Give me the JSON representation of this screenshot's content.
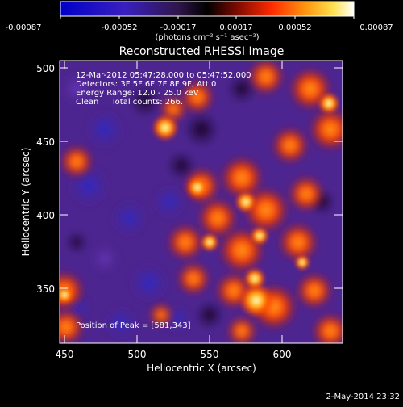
{
  "colorbar": {
    "tick_labels": [
      "-0.00087",
      "-0.00052",
      "-0.00017",
      "0.00017",
      "0.00052",
      "0.00087"
    ],
    "units": "(photons cm⁻² s⁻¹ asec⁻²)"
  },
  "image": {
    "title": "Reconstructed RHESSI Image",
    "xlabel": "Heliocentric X (arcsec)",
    "ylabel": "Heliocentric Y (arcsec)",
    "x_ticks": [
      "450",
      "500",
      "550",
      "600"
    ],
    "y_ticks": [
      "500",
      "450",
      "400",
      "350"
    ],
    "info_lines": [
      "12-Mar-2012 05:47:28.000 to 05:47:52.000",
      "Detectors: 3F 5F 6F 7F 8F 9F, Att 0",
      "Energy Range: 12.0 - 25.0 keV",
      "Clean     Total counts: 266."
    ],
    "peak_label": "Position of Peak = [581,343]"
  },
  "footer": {
    "date": "2-May-2014 23:32"
  },
  "colors": {
    "background": "#000000",
    "purple": "#5b2a9a",
    "blue": "#2a2ad0",
    "dark": "#1a0730",
    "orange": "#ff6a00",
    "yellow": "#ffd23a",
    "white": "#fffbe8"
  }
}
